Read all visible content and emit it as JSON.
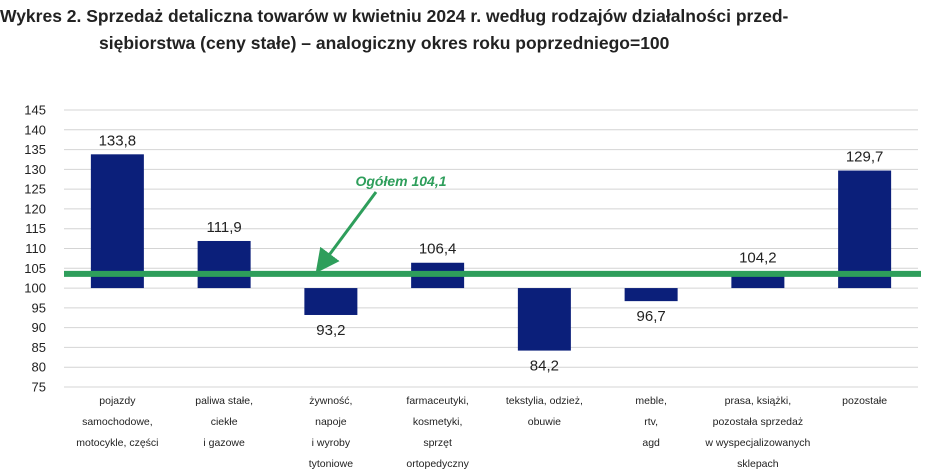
{
  "title_line1": "Wykres 2. Sprzedaż detaliczna towarów w kwietniu 2024 r. według rodzajów działalności przed-",
  "title_line2": "siębiorstwa (ceny stałe) – analogiczny okres roku poprzedniego=100",
  "chart_data": {
    "type": "bar",
    "base": 100,
    "categories": [
      [
        "pojazdy",
        "samochodowe,",
        "motocykle,  części"
      ],
      [
        "paliwa stałe,",
        "ciekłe",
        "i gazowe"
      ],
      [
        "żywność,",
        "napoje",
        "i wyroby",
        "tytoniowe"
      ],
      [
        "farmaceutyki,",
        "kosmetyki,",
        "sprzęt",
        "ortopedyczny"
      ],
      [
        "tekstylia,  odzież,",
        "obuwie"
      ],
      [
        "meble,",
        "rtv,",
        "agd"
      ],
      [
        "prasa,  książki,",
        "pozostała sprzedaż",
        "w wyspecjalizowanych",
        "sklepach"
      ],
      [
        "pozostałe"
      ]
    ],
    "values": [
      133.8,
      111.9,
      93.2,
      106.4,
      84.2,
      96.7,
      104.2,
      129.7
    ],
    "value_labels": [
      "133,8",
      "111,9",
      "93,2",
      "106,4",
      "84,2",
      "96,7",
      "104,2",
      "129,7"
    ],
    "ylim": [
      75,
      145
    ],
    "yticks": [
      75,
      80,
      85,
      90,
      95,
      100,
      105,
      110,
      115,
      120,
      125,
      130,
      135,
      140,
      145
    ],
    "grid": true,
    "bar_color": "#0b1f7a",
    "reference_line": {
      "value": 104.1,
      "label": "Ogółem 104,1",
      "color": "#2e9e5b"
    }
  }
}
